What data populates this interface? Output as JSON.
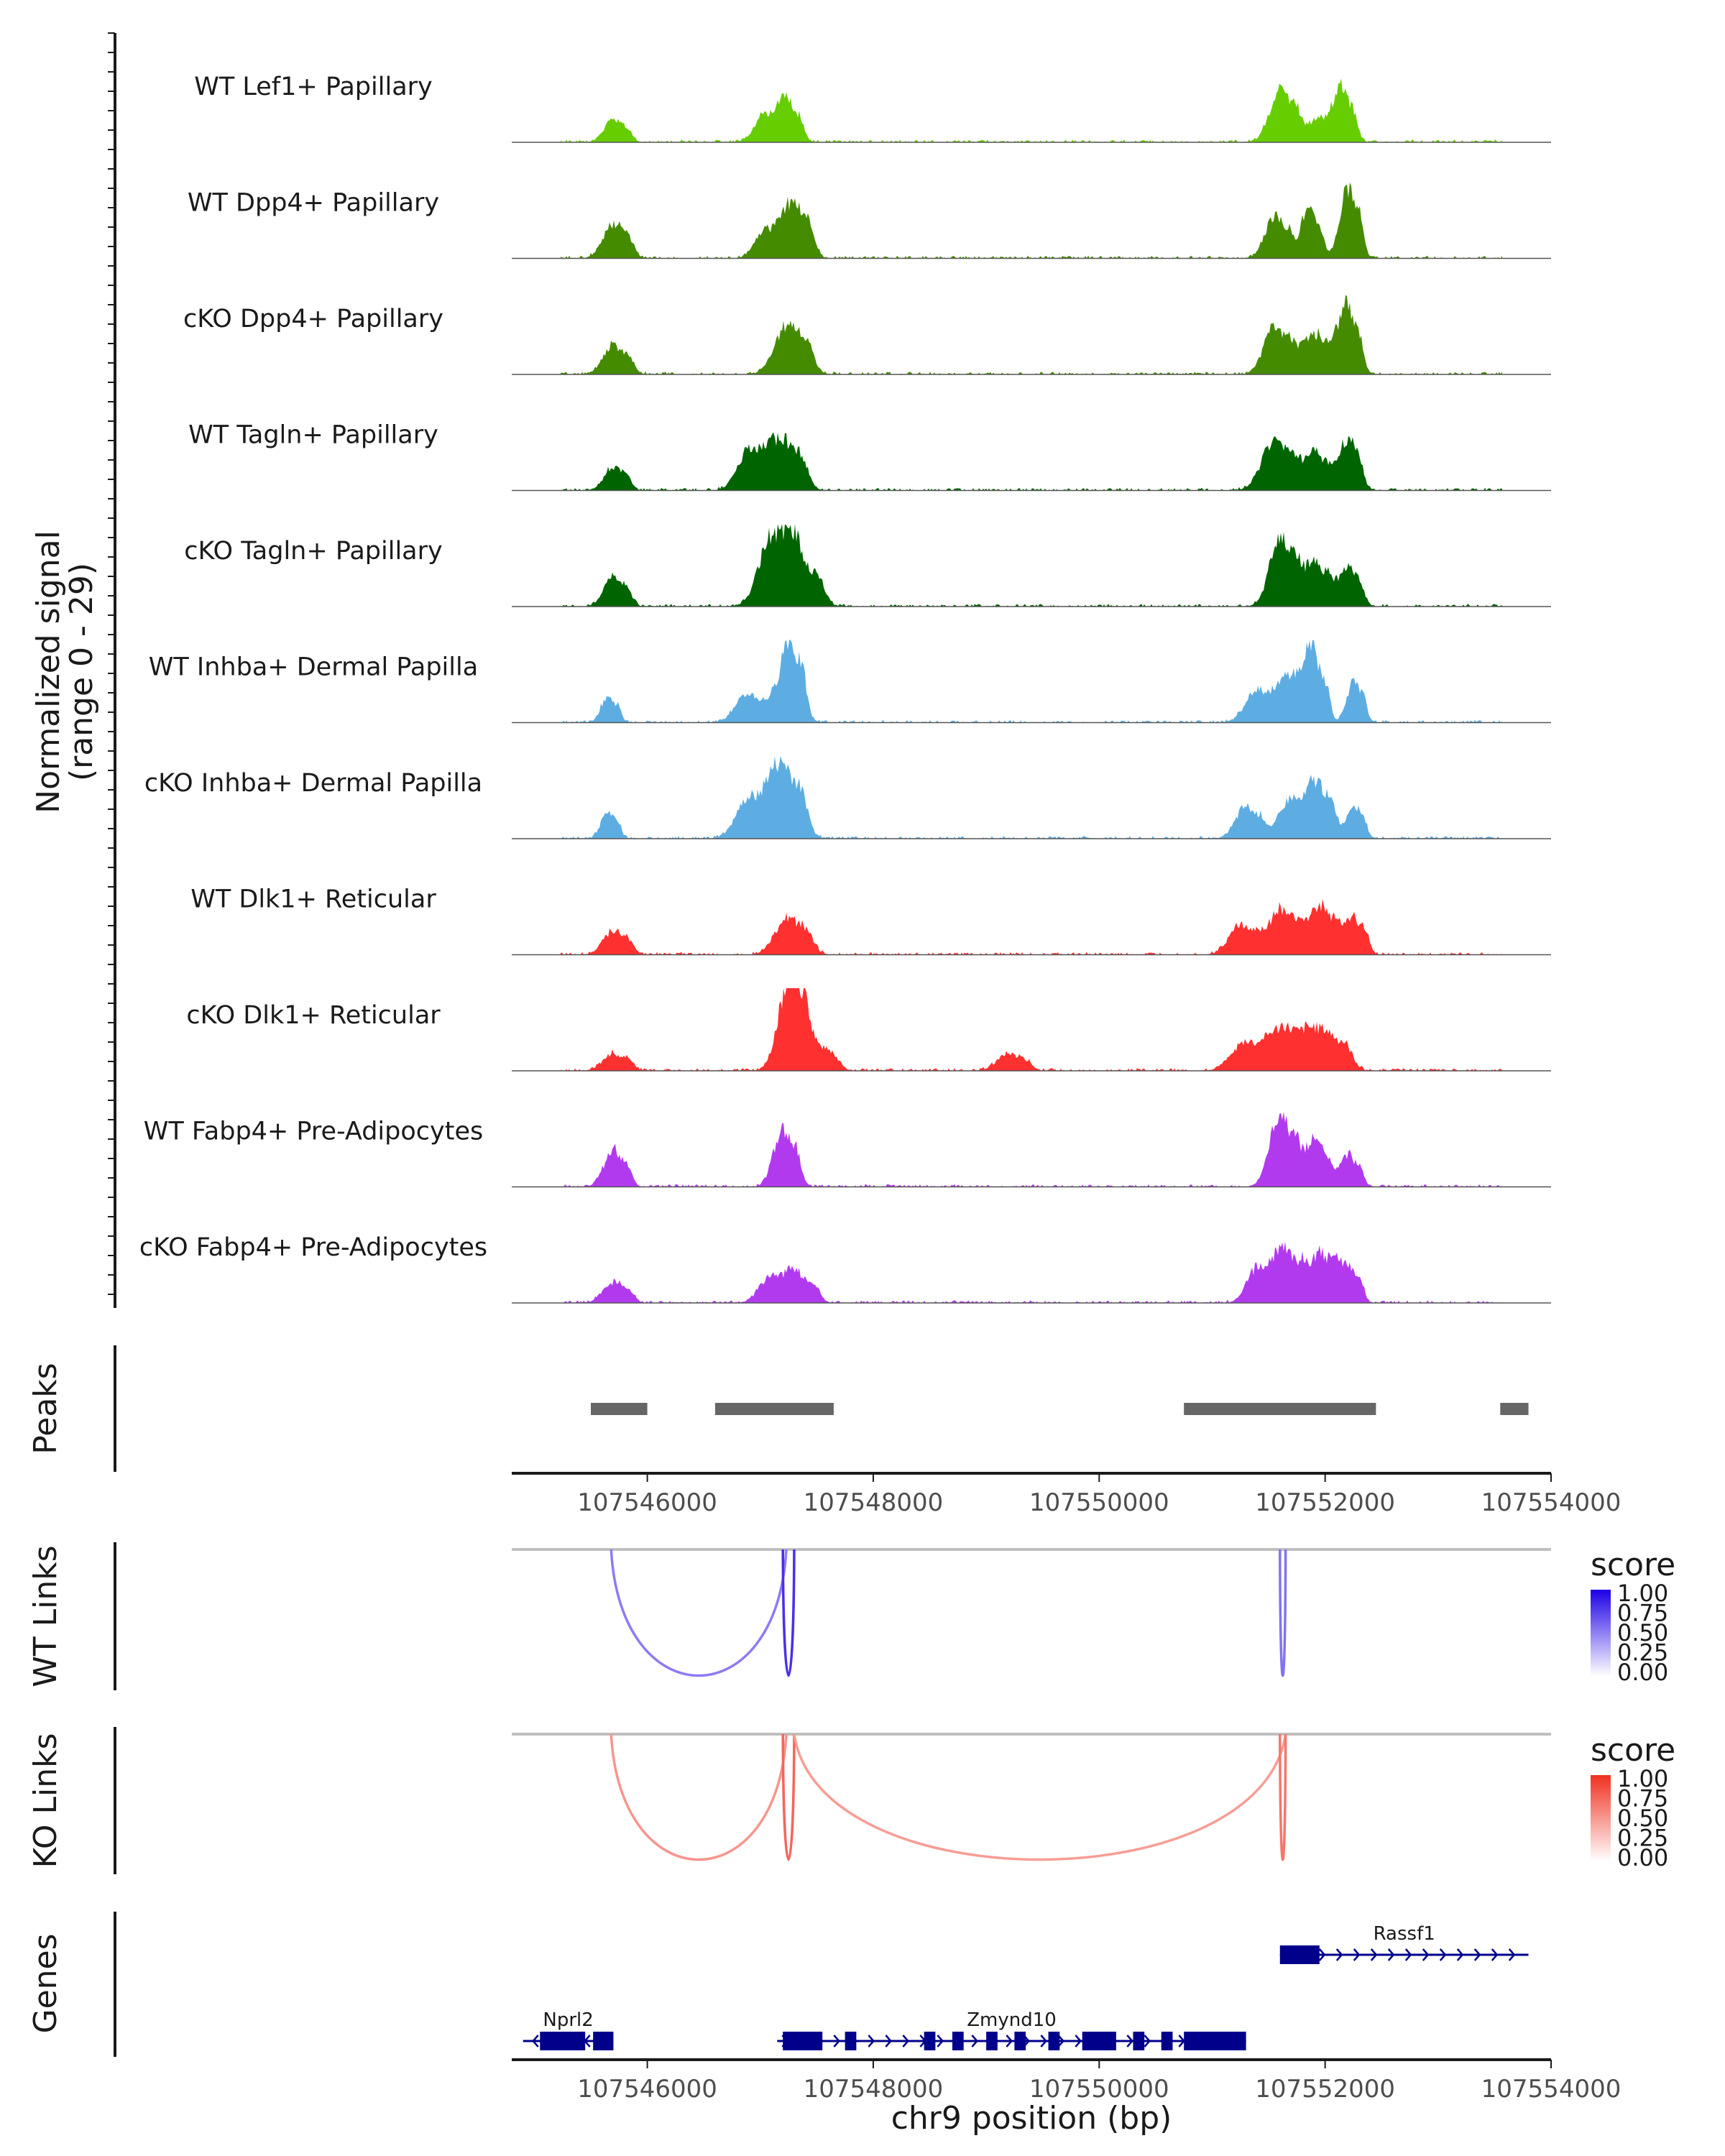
{
  "chart_data": {
    "type": "area",
    "title": "",
    "xlabel": "chr9 position (bp)",
    "ylabel": "Normalized signal\n(range 0 - 29)",
    "ylim": [
      0,
      29
    ],
    "xlim": [
      107544800,
      107554000
    ],
    "xticks": [
      107546000,
      107548000,
      107550000,
      107552000,
      107554000
    ],
    "tracks": [
      {
        "name": "WT Lef1+ Papillary",
        "color": "#66CD00",
        "seed": 1,
        "peaks": [
          [
            107545700,
            8,
            80
          ],
          [
            107547050,
            10,
            90
          ],
          [
            107547250,
            13,
            70
          ],
          [
            107551600,
            18,
            90
          ],
          [
            107552150,
            15,
            70
          ],
          [
            107551950,
            8,
            120
          ]
        ]
      },
      {
        "name": "WT Dpp4+ Papillary",
        "color": "#458B00",
        "seed": 2,
        "peaks": [
          [
            107545700,
            12,
            90
          ],
          [
            107547300,
            19,
            90
          ],
          [
            107547050,
            10,
            90
          ],
          [
            107551550,
            15,
            80
          ],
          [
            107551850,
            17,
            70
          ],
          [
            107552200,
            24,
            70
          ],
          [
            107553750,
            5,
            70
          ]
        ]
      },
      {
        "name": "cKO Dpp4+ Papillary",
        "color": "#458B00",
        "seed": 3,
        "peaks": [
          [
            107545700,
            10,
            90
          ],
          [
            107547250,
            18,
            110
          ],
          [
            107551550,
            16,
            90
          ],
          [
            107551900,
            14,
            120
          ],
          [
            107552200,
            22,
            70
          ],
          [
            107553750,
            6,
            70
          ]
        ]
      },
      {
        "name": "WT Tagln+ Papillary",
        "color": "#006400",
        "seed": 4,
        "peaks": [
          [
            107545700,
            8,
            80
          ],
          [
            107546900,
            14,
            100
          ],
          [
            107547200,
            18,
            110
          ],
          [
            107551550,
            17,
            110
          ],
          [
            107551900,
            13,
            90
          ],
          [
            107552200,
            18,
            70
          ]
        ]
      },
      {
        "name": "cKO Tagln+ Papillary",
        "color": "#006400",
        "seed": 5,
        "peaks": [
          [
            107545700,
            11,
            80
          ],
          [
            107547100,
            24,
            110
          ],
          [
            107547350,
            16,
            110
          ],
          [
            107551600,
            24,
            90
          ],
          [
            107551900,
            16,
            90
          ],
          [
            107552200,
            14,
            70
          ]
        ]
      },
      {
        "name": "WT Inhba+ Dermal Papilla",
        "color": "#5DADE2",
        "seed": 6,
        "peaks": [
          [
            107545650,
            9,
            60
          ],
          [
            107546900,
            10,
            110
          ],
          [
            107547250,
            29,
            80
          ],
          [
            107551400,
            12,
            100
          ],
          [
            107551700,
            17,
            90
          ],
          [
            107551900,
            22,
            70
          ],
          [
            107552250,
            14,
            60
          ],
          [
            107553800,
            7,
            50
          ]
        ]
      },
      {
        "name": "cKO Inhba+ Dermal Papilla",
        "color": "#5DADE2",
        "seed": 7,
        "peaks": [
          [
            107545650,
            9,
            60
          ],
          [
            107546900,
            14,
            110
          ],
          [
            107547200,
            26,
            110
          ],
          [
            107551300,
            11,
            90
          ],
          [
            107551700,
            14,
            100
          ],
          [
            107551950,
            18,
            80
          ],
          [
            107552250,
            12,
            60
          ],
          [
            107553800,
            8,
            50
          ]
        ]
      },
      {
        "name": "WT Dlk1+ Reticular",
        "color": "#FF3030",
        "seed": 8,
        "peaks": [
          [
            107545700,
            8,
            90
          ],
          [
            107547250,
            13,
            110
          ],
          [
            107551250,
            10,
            100
          ],
          [
            107551600,
            16,
            100
          ],
          [
            107551950,
            17,
            100
          ],
          [
            107552250,
            13,
            70
          ]
        ]
      },
      {
        "name": "cKO Dlk1+ Reticular",
        "color": "#FF3030",
        "seed": 9,
        "peaks": [
          [
            107545700,
            6,
            90
          ],
          [
            107547250,
            29,
            90
          ],
          [
            107547450,
            10,
            120
          ],
          [
            107549200,
            6,
            100
          ],
          [
            107551300,
            10,
            120
          ],
          [
            107551650,
            15,
            120
          ],
          [
            107552000,
            14,
            120
          ],
          [
            107553800,
            5,
            60
          ]
        ]
      },
      {
        "name": "WT Fabp4+ Pre-Adipocytes",
        "color": "#B23AEE",
        "seed": 10,
        "peaks": [
          [
            107545700,
            13,
            80
          ],
          [
            107547200,
            20,
            80
          ],
          [
            107551600,
            25,
            90
          ],
          [
            107551900,
            16,
            80
          ],
          [
            107552200,
            11,
            70
          ]
        ]
      },
      {
        "name": "cKO Fabp4+ Pre-Adipocytes",
        "color": "#B23AEE",
        "seed": 11,
        "peaks": [
          [
            107545700,
            7,
            90
          ],
          [
            107547100,
            10,
            100
          ],
          [
            107547350,
            9,
            90
          ],
          [
            107551400,
            12,
            90
          ],
          [
            107551650,
            18,
            90
          ],
          [
            107551950,
            18,
            90
          ],
          [
            107552200,
            13,
            70
          ],
          [
            107553800,
            6,
            50
          ]
        ]
      }
    ],
    "peaks": [
      [
        107545500,
        107546000
      ],
      [
        107546600,
        107547650
      ],
      [
        107550750,
        107552450
      ],
      [
        107553550,
        107553800
      ]
    ],
    "wt_links": [
      {
        "start": 107545680,
        "end": 107547230,
        "score": 0.35
      },
      {
        "start": 107547200,
        "end": 107547300,
        "score": 0.75
      },
      {
        "start": 107551600,
        "end": 107551650,
        "score": 0.4
      }
    ],
    "ko_links": [
      {
        "start": 107545680,
        "end": 107547230,
        "score": 0.35
      },
      {
        "start": 107547200,
        "end": 107547300,
        "score": 0.65
      },
      {
        "start": 107547300,
        "end": 107551650,
        "score": 0.3
      },
      {
        "start": 107551600,
        "end": 107551650,
        "score": 0.55
      }
    ],
    "genes": [
      {
        "name": "Nprl2",
        "start": 107544900,
        "end": 107545700,
        "strand": "-",
        "exons": [
          [
            107545050,
            107545450
          ],
          [
            107545520,
            107545700
          ]
        ]
      },
      {
        "name": "Zmynd10",
        "start": 107547150,
        "end": 107551300,
        "strand": "+",
        "exons": [
          [
            107547200,
            107547550
          ],
          [
            107547750,
            107547850
          ],
          [
            107548450,
            107548550
          ],
          [
            107548700,
            107548800
          ],
          [
            107549000,
            107549100
          ],
          [
            107549250,
            107549350
          ],
          [
            107549550,
            107549650
          ],
          [
            107549850,
            107550150
          ],
          [
            107550300,
            107550400
          ],
          [
            107550550,
            107550650
          ],
          [
            107550750,
            107551300
          ]
        ]
      },
      {
        "name": "Rassf1",
        "start": 107551600,
        "end": 107553800,
        "strand": "+",
        "exons": [
          [
            107551600,
            107551950
          ]
        ]
      }
    ]
  },
  "panels": {
    "peaks_label": "Peaks",
    "wt_links_label": "WT Links",
    "ko_links_label": "KO Links",
    "genes_label": "Genes"
  },
  "legends": {
    "wt": {
      "title": "score",
      "ticks": [
        "1.00",
        "0.75",
        "0.50",
        "0.25",
        "0.00"
      ],
      "color": "#1E00E6"
    },
    "ko": {
      "title": "score",
      "ticks": [
        "1.00",
        "0.75",
        "0.50",
        "0.25",
        "0.00"
      ],
      "color": "#F03020"
    }
  }
}
